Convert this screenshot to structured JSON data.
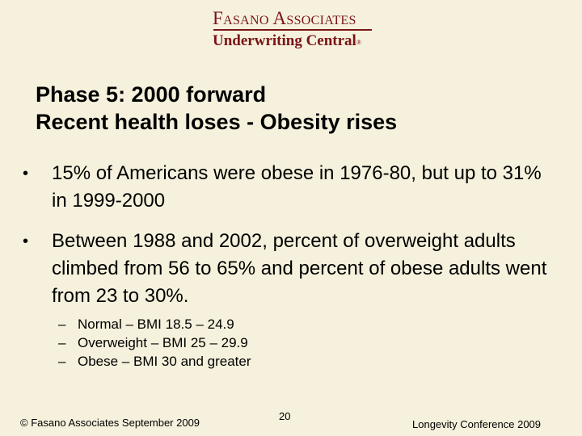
{
  "logo": {
    "company": "Fasano Associates",
    "tagline": "Underwriting Central",
    "mark": "®"
  },
  "title": {
    "line1": "Phase 5: 2000 forward",
    "line2": "Recent health loses - Obesity rises"
  },
  "bullets": [
    {
      "symbol": "•",
      "text": "15% of Americans were obese in 1976-80, but up to 31% in 1999-2000"
    },
    {
      "symbol": "•",
      "text": "Between 1988 and 2002, percent of overweight adults climbed from 56 to 65% and percent of obese adults went from 23 to 30%."
    }
  ],
  "sub_bullets": [
    {
      "dash": "–",
      "text": "Normal – BMI 18.5 – 24.9"
    },
    {
      "dash": "–",
      "text": "Overweight – BMI 25 – 29.9"
    },
    {
      "dash": "–",
      "text": "Obese – BMI 30 and greater"
    }
  ],
  "footer": {
    "left": "© Fasano Associates  September 2009",
    "page_number": "20",
    "right": "Longevity Conference 2009"
  },
  "colors": {
    "background": "#f5f1dc",
    "brand": "#7a1418"
  }
}
